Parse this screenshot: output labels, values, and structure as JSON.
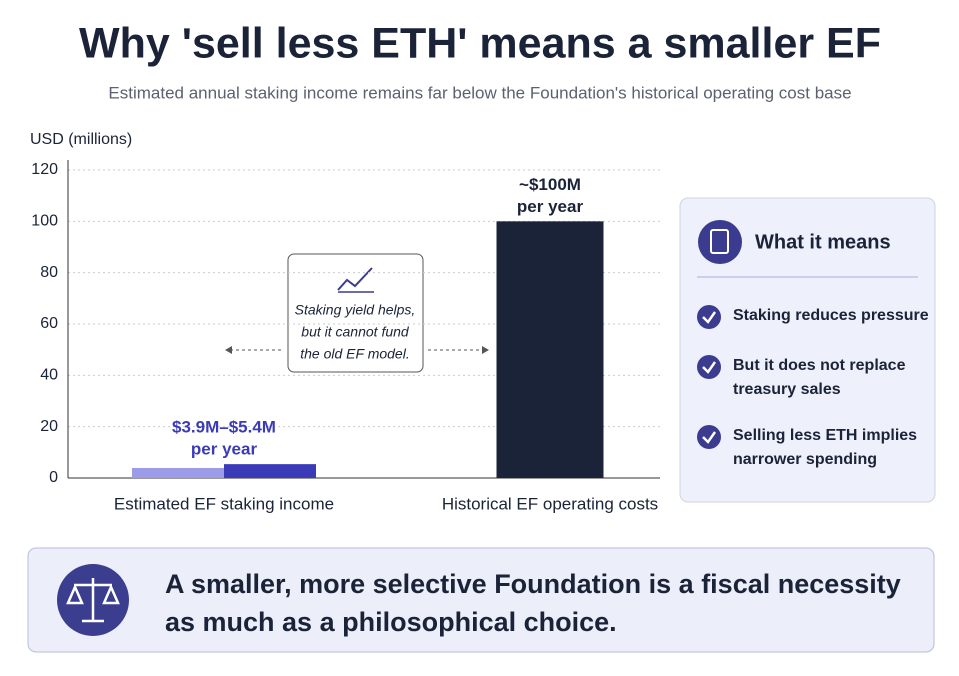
{
  "chart_data": {
    "type": "bar",
    "title": "Why 'sell less ETH' means a smaller EF",
    "subtitle": "Estimated annual staking income remains far below the Foundation's historical operating cost base",
    "y_label": "USD (millions)",
    "categories": [
      "Estimated EF staking income",
      "Historical EF operating costs"
    ],
    "values": [
      3.9,
      100
    ],
    "values_high": [
      5.4,
      null
    ],
    "value_labels": [
      [
        "$3.9M–$5.4M",
        "per year"
      ],
      [
        "~$100M",
        "per year"
      ]
    ],
    "colors": [
      "#9c9ce9",
      "#1b2338"
    ],
    "high_color": "#3b3bb8",
    "label_colors": [
      "#3b3bb8",
      "#1b2338"
    ],
    "ylim": [
      0,
      120
    ],
    "yticks": [
      0,
      20,
      40,
      60,
      80,
      100,
      120
    ],
    "grid": true,
    "annotation": [
      "Staking yield helps,",
      "but it cannot fund",
      "the old EF model."
    ]
  },
  "side_panel": {
    "heading": "What it means",
    "items": [
      [
        "Staking reduces pressure"
      ],
      [
        "But it does not replace",
        "treasury sales"
      ],
      [
        "Selling less ETH implies",
        "narrower spending"
      ]
    ]
  },
  "banner": {
    "lines": [
      "A smaller, more selective Foundation is a fiscal necessity",
      "as much as a philosophical choice."
    ]
  }
}
